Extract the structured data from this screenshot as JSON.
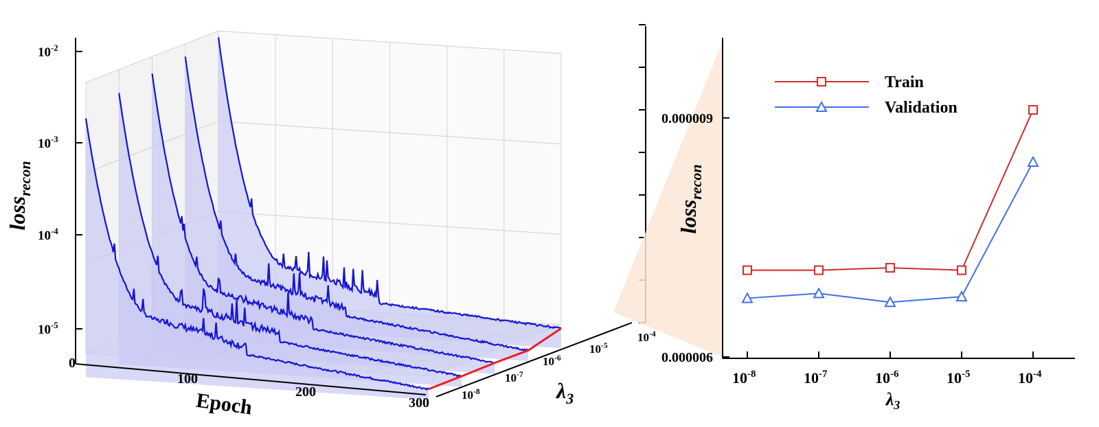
{
  "chart_data": [
    {
      "type": "line",
      "projection": "3d-waterfall",
      "ylabel": "loss",
      "ylabel_sub": "recon",
      "xlabel": "Epoch",
      "zlabel": "λ",
      "zlabel_sub": "3",
      "xticks": [
        "0",
        "100",
        "200",
        "300"
      ],
      "xlim": [
        0,
        300
      ],
      "yscale": "log",
      "ylim": [
        1e-05,
        0.01
      ],
      "yticks": [
        {
          "base": "10",
          "exp": "-2"
        },
        {
          "base": "10",
          "exp": "-3"
        },
        {
          "base": "10",
          "exp": "-4"
        },
        {
          "base": "10",
          "exp": "-5"
        }
      ],
      "zticks": [
        {
          "base": "10",
          "exp": "-8"
        },
        {
          "base": "10",
          "exp": "-7"
        },
        {
          "base": "10",
          "exp": "-6"
        },
        {
          "base": "10",
          "exp": "-5"
        },
        {
          "base": "10",
          "exp": "-4"
        }
      ],
      "grid": true,
      "line_color": "#1414d2",
      "fill_color": "#c9c9f4",
      "highlight_color": "#e82020",
      "series": [
        {
          "lambda": "1e-8",
          "start_loss": 0.004,
          "final_loss": 7.2e-06
        },
        {
          "lambda": "1e-7",
          "start_loss": 0.0055,
          "final_loss": 7.2e-06
        },
        {
          "lambda": "1e-6",
          "start_loss": 0.0065,
          "final_loss": 7.3e-06
        },
        {
          "lambda": "1e-5",
          "start_loss": 0.0072,
          "final_loss": 7.2e-06
        },
        {
          "lambda": "1e-4",
          "start_loss": 0.0085,
          "final_loss": 9.1e-06
        }
      ]
    },
    {
      "type": "line",
      "categories": [
        {
          "base": "10",
          "exp": "-8"
        },
        {
          "base": "10",
          "exp": "-7"
        },
        {
          "base": "10",
          "exp": "-6"
        },
        {
          "base": "10",
          "exp": "-5"
        },
        {
          "base": "10",
          "exp": "-4"
        }
      ],
      "ylim": [
        6e-06,
        1e-05
      ],
      "yticks": [
        "0.000009",
        "0.000006"
      ],
      "ylabel": "loss",
      "ylabel_sub": "recon",
      "xlabel": "λ",
      "xlabel_sub": "3",
      "legend_position": "top-left",
      "series": [
        {
          "name": "Train",
          "color": "#d42a2a",
          "marker": "square",
          "values": [
            7.1e-06,
            7.1e-06,
            7.13e-06,
            7.1e-06,
            9.1e-06
          ]
        },
        {
          "name": "Validation",
          "color": "#3f6fe6",
          "marker": "triangle",
          "values": [
            6.75e-06,
            6.81e-06,
            6.7e-06,
            6.77e-06,
            8.45e-06
          ]
        }
      ]
    }
  ]
}
